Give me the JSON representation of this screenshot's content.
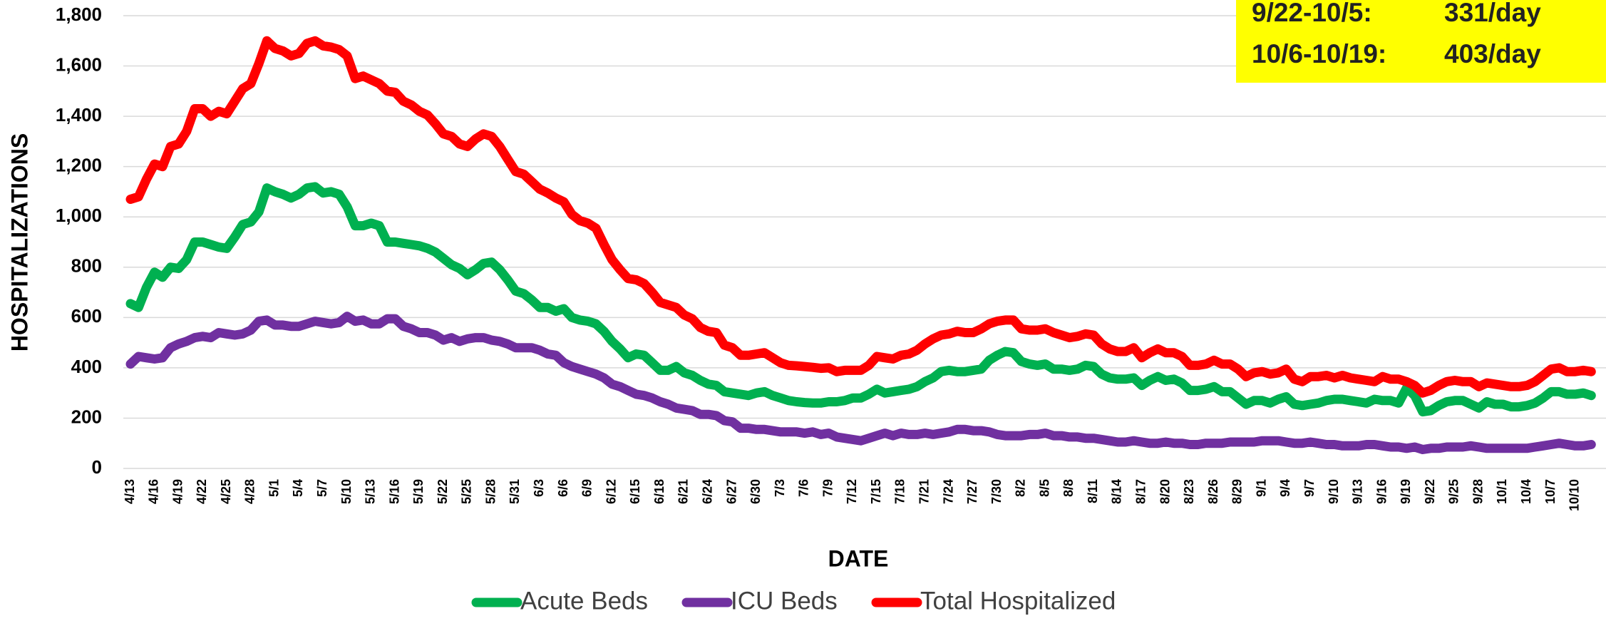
{
  "chart_data": {
    "type": "line",
    "xlabel": "DATE",
    "ylabel": "HOSPITALIZATIONS",
    "annotations": [
      [
        "9/22-10/5:",
        "331/day"
      ],
      [
        "10/6-10/19:",
        "403/day"
      ]
    ],
    "categories": [
      "4/13",
      null,
      null,
      "4/16",
      null,
      null,
      "4/19",
      null,
      null,
      "4/22",
      null,
      null,
      "4/25",
      null,
      null,
      "4/28",
      null,
      null,
      "5/1",
      null,
      null,
      "5/4",
      null,
      null,
      "5/7",
      null,
      null,
      "5/10",
      null,
      null,
      "5/13",
      null,
      null,
      "5/16",
      null,
      null,
      "5/19",
      null,
      null,
      "5/22",
      null,
      null,
      "5/25",
      null,
      null,
      "5/28",
      null,
      null,
      "5/31",
      null,
      null,
      "6/3",
      null,
      null,
      "6/6",
      null,
      null,
      "6/9",
      null,
      null,
      "6/12",
      null,
      null,
      "6/15",
      null,
      null,
      "6/18",
      null,
      null,
      "6/21",
      null,
      null,
      "6/24",
      null,
      null,
      "6/27",
      null,
      null,
      "6/30",
      null,
      null,
      "7/3",
      null,
      null,
      "7/6",
      null,
      null,
      "7/9",
      null,
      null,
      "7/12",
      null,
      null,
      "7/15",
      null,
      null,
      "7/18",
      null,
      null,
      "7/21",
      null,
      null,
      "7/24",
      null,
      null,
      "7/27",
      null,
      null,
      "7/30",
      null,
      null,
      "8/2",
      null,
      null,
      "8/5",
      null,
      null,
      "8/8",
      null,
      null,
      "8/11",
      null,
      null,
      "8/14",
      null,
      null,
      "8/17",
      null,
      null,
      "8/20",
      null,
      null,
      "8/23",
      null,
      null,
      "8/26",
      null,
      null,
      "8/29",
      null,
      null,
      "9/1",
      null,
      null,
      "9/4",
      null,
      null,
      "9/7",
      null,
      null,
      "9/10",
      null,
      null,
      "9/13",
      null,
      null,
      "9/16",
      null,
      null,
      "9/19",
      null,
      null,
      "9/22",
      null,
      null,
      "9/25",
      null,
      null,
      "9/28",
      null,
      null,
      "10/1",
      null,
      null,
      "10/4",
      null,
      null,
      "10/7",
      null,
      null,
      "10/10",
      null,
      null
    ],
    "series": [
      {
        "name": "Acute Beds",
        "color": "#00b050",
        "values": [
          655,
          640,
          720,
          780,
          760,
          800,
          795,
          830,
          900,
          900,
          890,
          880,
          875,
          920,
          970,
          980,
          1020,
          1115,
          1100,
          1090,
          1075,
          1090,
          1115,
          1120,
          1095,
          1100,
          1090,
          1040,
          965,
          965,
          975,
          965,
          900,
          900,
          895,
          890,
          885,
          875,
          860,
          835,
          810,
          795,
          770,
          790,
          815,
          820,
          790,
          750,
          705,
          695,
          670,
          640,
          640,
          625,
          635,
          600,
          590,
          585,
          575,
          545,
          505,
          475,
          440,
          455,
          450,
          420,
          390,
          390,
          405,
          380,
          370,
          350,
          335,
          330,
          305,
          300,
          295,
          290,
          300,
          305,
          290,
          280,
          270,
          265,
          262,
          260,
          260,
          265,
          265,
          270,
          280,
          280,
          295,
          315,
          300,
          305,
          310,
          315,
          325,
          345,
          360,
          385,
          390,
          385,
          385,
          390,
          395,
          430,
          450,
          465,
          460,
          425,
          415,
          410,
          415,
          395,
          395,
          390,
          395,
          410,
          405,
          375,
          360,
          355,
          355,
          360,
          330,
          350,
          365,
          350,
          355,
          340,
          310,
          310,
          315,
          325,
          305,
          305,
          280,
          255,
          270,
          270,
          260,
          275,
          285,
          255,
          250,
          255,
          260,
          270,
          275,
          275,
          270,
          265,
          260,
          275,
          270,
          270,
          260,
          320,
          290,
          225,
          230,
          250,
          265,
          270,
          270,
          255,
          240,
          265,
          255,
          255,
          245,
          245,
          250,
          260,
          280,
          305,
          305,
          295,
          295,
          300,
          290
        ]
      },
      {
        "name": "ICU Beds",
        "color": "#7030a0",
        "values": [
          415,
          445,
          440,
          435,
          440,
          480,
          495,
          505,
          520,
          525,
          520,
          540,
          535,
          530,
          535,
          550,
          585,
          590,
          570,
          570,
          565,
          565,
          575,
          585,
          580,
          575,
          580,
          605,
          585,
          590,
          575,
          575,
          595,
          595,
          565,
          555,
          540,
          540,
          530,
          510,
          520,
          505,
          515,
          520,
          520,
          510,
          505,
          495,
          480,
          480,
          480,
          470,
          455,
          450,
          420,
          405,
          395,
          385,
          375,
          360,
          335,
          325,
          310,
          295,
          290,
          280,
          265,
          255,
          240,
          235,
          230,
          215,
          215,
          210,
          190,
          185,
          160,
          160,
          155,
          155,
          150,
          145,
          145,
          145,
          140,
          145,
          135,
          140,
          125,
          120,
          115,
          110,
          120,
          130,
          140,
          130,
          140,
          135,
          135,
          140,
          135,
          140,
          145,
          155,
          155,
          150,
          150,
          145,
          135,
          130,
          130,
          130,
          135,
          135,
          140,
          130,
          130,
          125,
          125,
          120,
          120,
          115,
          110,
          105,
          105,
          110,
          105,
          100,
          100,
          105,
          100,
          100,
          95,
          95,
          100,
          100,
          100,
          105,
          105,
          105,
          105,
          110,
          110,
          110,
          105,
          100,
          100,
          105,
          100,
          95,
          95,
          90,
          90,
          90,
          95,
          95,
          90,
          85,
          85,
          80,
          85,
          75,
          80,
          80,
          85,
          85,
          85,
          90,
          85,
          80,
          80,
          80,
          80,
          80,
          80,
          85,
          90,
          95,
          100,
          95,
          90,
          90,
          95
        ]
      },
      {
        "name": "Total Hospitalized",
        "color": "#ff0000",
        "values": [
          1070,
          1080,
          1150,
          1210,
          1200,
          1280,
          1290,
          1340,
          1430,
          1430,
          1400,
          1420,
          1410,
          1460,
          1510,
          1530,
          1610,
          1700,
          1670,
          1660,
          1640,
          1650,
          1690,
          1700,
          1680,
          1675,
          1665,
          1640,
          1550,
          1560,
          1545,
          1530,
          1500,
          1495,
          1460,
          1445,
          1420,
          1405,
          1370,
          1330,
          1320,
          1290,
          1280,
          1310,
          1330,
          1320,
          1280,
          1230,
          1180,
          1170,
          1140,
          1110,
          1095,
          1075,
          1060,
          1010,
          985,
          975,
          955,
          890,
          830,
          790,
          755,
          750,
          735,
          700,
          660,
          650,
          640,
          610,
          595,
          560,
          545,
          540,
          490,
          480,
          450,
          450,
          455,
          460,
          440,
          420,
          410,
          408,
          405,
          402,
          398,
          400,
          385,
          390,
          390,
          390,
          410,
          445,
          440,
          435,
          450,
          455,
          470,
          495,
          515,
          530,
          535,
          545,
          540,
          540,
          555,
          575,
          585,
          590,
          590,
          555,
          550,
          550,
          555,
          540,
          530,
          520,
          525,
          535,
          530,
          495,
          475,
          465,
          465,
          480,
          440,
          460,
          475,
          460,
          460,
          445,
          410,
          410,
          415,
          430,
          415,
          415,
          395,
          365,
          380,
          385,
          375,
          380,
          395,
          355,
          345,
          365,
          365,
          370,
          360,
          370,
          360,
          355,
          350,
          345,
          365,
          355,
          355,
          345,
          330,
          300,
          310,
          330,
          345,
          350,
          345,
          345,
          325,
          340,
          335,
          330,
          325,
          325,
          330,
          345,
          370,
          395,
          400,
          385,
          385,
          390,
          385
        ]
      }
    ],
    "ylim": [
      0,
      1800
    ],
    "yticks": [
      0,
      200,
      400,
      600,
      800,
      {
        "value": 1000,
        "label": "1,000"
      },
      {
        "value": 1200,
        "label": "1,200"
      },
      {
        "value": 1400,
        "label": "1,400"
      },
      {
        "value": 1600,
        "label": "1,600"
      },
      {
        "value": 1800,
        "label": "1,800"
      }
    ],
    "grid": true,
    "legend": "bottom"
  }
}
